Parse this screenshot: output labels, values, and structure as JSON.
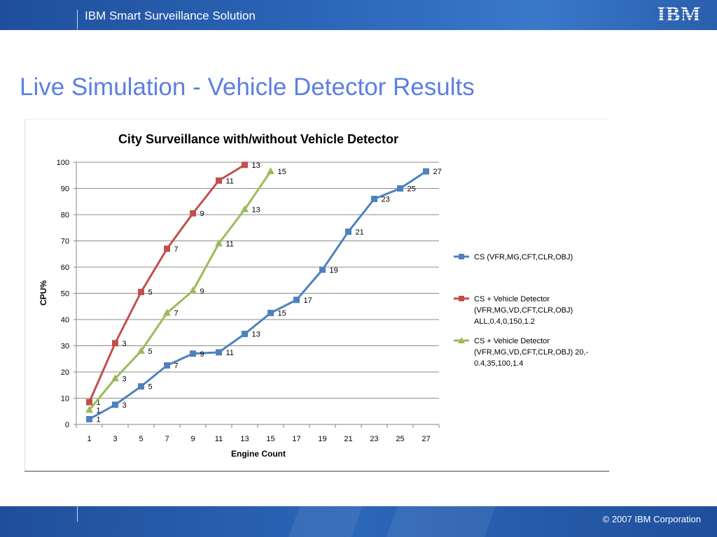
{
  "header": {
    "title": "IBM Smart Surveillance Solution",
    "logo_text": "IBM"
  },
  "slide": {
    "title": "Live Simulation - Vehicle Detector Results"
  },
  "footer": {
    "copyright": "© 2007 IBM Corporation"
  },
  "colors": {
    "series_blue": "#4f81bd",
    "series_red": "#c0504d",
    "series_green": "#9bbb59",
    "title_blue": "#5c7fe0",
    "bar_blue": "#2c66b8"
  },
  "chart_data": {
    "type": "line",
    "title": "City Surveillance with/without Vehicle Detector",
    "xlabel": "Engine Count",
    "ylabel": "CPU%",
    "ylim": [
      0,
      100
    ],
    "yticks": [
      0,
      10,
      20,
      30,
      40,
      50,
      60,
      70,
      80,
      90,
      100
    ],
    "categories": [
      "1",
      "3",
      "5",
      "7",
      "9",
      "11",
      "13",
      "15",
      "17",
      "19",
      "21",
      "23",
      "25",
      "27"
    ],
    "grid": true,
    "legend_position": "right",
    "series": [
      {
        "name": "CS (VFR,MG,CFT,CLR,OBJ)",
        "legend_lines": [
          "CS (VFR,MG,CFT,CLR,OBJ)"
        ],
        "color": "#4f81bd",
        "marker": "square",
        "x": [
          1,
          3,
          5,
          7,
          9,
          11,
          13,
          15,
          17,
          19,
          21,
          23,
          25,
          27
        ],
        "values": [
          2,
          7.5,
          14.5,
          22.5,
          27,
          27.5,
          34.5,
          42.5,
          47.5,
          59,
          73.5,
          86,
          90,
          96.5
        ],
        "labels": [
          "1",
          "3",
          "5",
          "7",
          "9",
          "11",
          "13",
          "15",
          "17",
          "19",
          "21",
          "23",
          "25",
          "27"
        ]
      },
      {
        "name": "CS + Vehicle Detector (VFR,MG,VD,CFT,CLR,OBJ) ALL,0.4,0,150,1.2",
        "legend_lines": [
          "CS + Vehicle Detector",
          "(VFR,MG,VD,CFT,CLR,OBJ)",
          "ALL,0.4,0,150,1.2"
        ],
        "color": "#c0504d",
        "marker": "square",
        "x": [
          1,
          3,
          5,
          7,
          9,
          11,
          13
        ],
        "values": [
          8.5,
          31,
          50.5,
          67,
          80.5,
          93,
          99
        ],
        "labels": [
          "1",
          "3",
          "5",
          "7",
          "9",
          "11",
          "13"
        ]
      },
      {
        "name": "CS + Vehicle Detector (VFR,MG,VD,CFT,CLR,OBJ) 20,-0.4,35,100,1.4",
        "legend_lines": [
          "CS + Vehicle Detector",
          "(VFR,MG,VD,CFT,CLR,OBJ) 20,-",
          "0.4,35,100,1.4"
        ],
        "color": "#9bbb59",
        "marker": "triangle",
        "x": [
          1,
          3,
          5,
          7,
          9,
          11,
          13,
          15
        ],
        "values": [
          5.5,
          17.5,
          28,
          42.5,
          51,
          69,
          82,
          96.5
        ],
        "labels": [
          "1",
          "3",
          "5",
          "7",
          "9",
          "11",
          "13",
          "15"
        ]
      }
    ]
  }
}
